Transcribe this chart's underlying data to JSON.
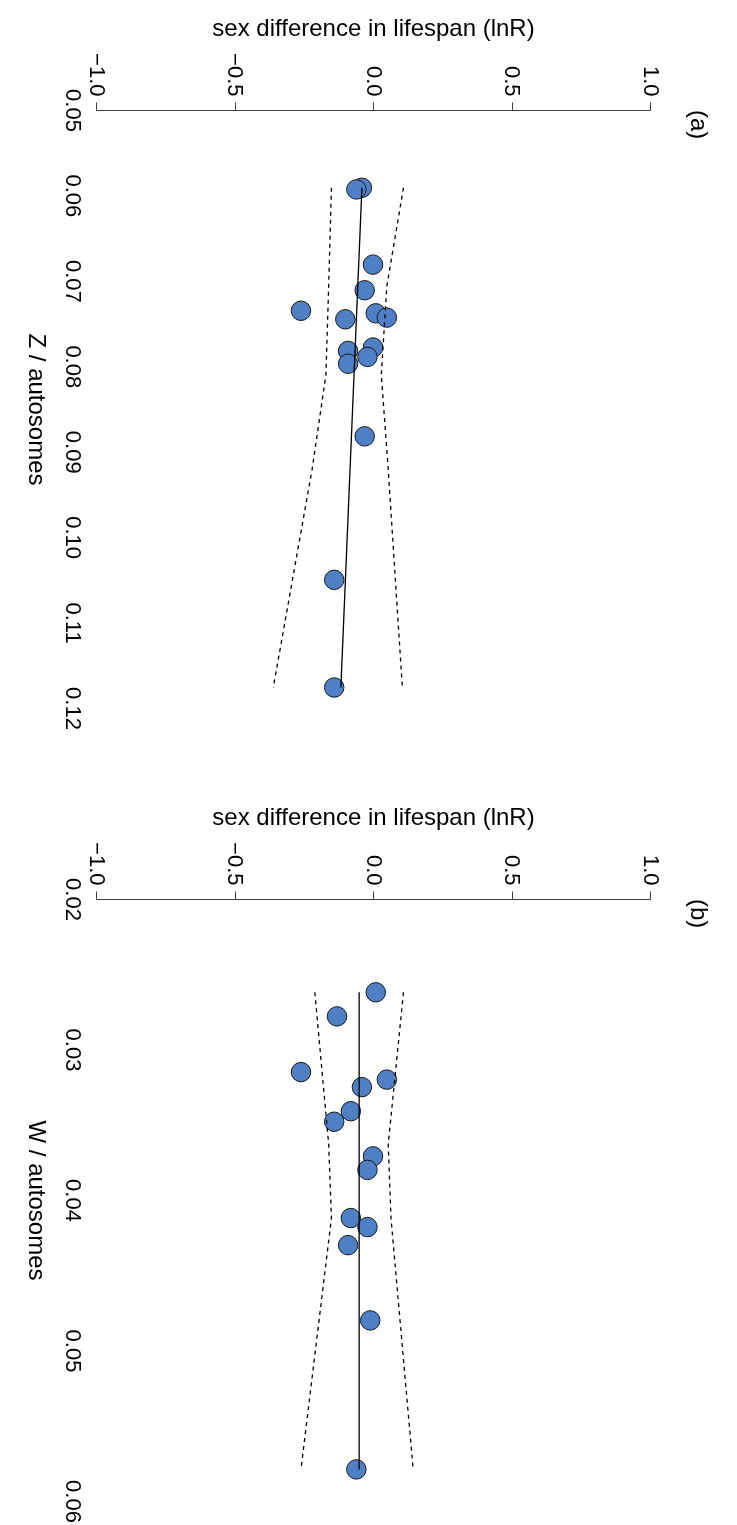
{
  "chart_data": [
    {
      "type": "scatter",
      "annotations": [
        "(a)"
      ],
      "xlabel": "sex difference in lifespan (lnR)",
      "ylabel": "Z / autosomes",
      "xlim": [
        -1,
        1
      ],
      "xticks": [
        {
          "value": -1,
          "label": "−1.0"
        },
        {
          "value": -0.5,
          "label": "−0.5"
        },
        {
          "value": 0,
          "label": "0.0"
        },
        {
          "value": 0.5,
          "label": "0.5"
        },
        {
          "value": 1,
          "label": "1.0"
        }
      ],
      "ylim": [
        0.12,
        0.05
      ],
      "yticks": [
        0.05,
        0.06,
        0.07,
        0.08,
        0.09,
        {
          "value": 0.1,
          "label": "0.10"
        },
        0.11,
        0.12
      ],
      "grid": false,
      "series": [
        {
          "type": "scatter",
          "marker": "circle",
          "color": "#4f7fc4",
          "x": [
            -0.04,
            -0.06,
            0.0,
            -0.03,
            -0.26,
            -0.1,
            0.01,
            0.05,
            0.0,
            -0.09,
            -0.02,
            -0.09,
            -0.03,
            -0.14,
            -0.14
          ],
          "values": [
            0.0591,
            0.0593,
            0.0681,
            0.0711,
            0.0735,
            0.0745,
            0.0738,
            0.0743,
            0.0778,
            0.0782,
            0.0789,
            0.0797,
            0.0882,
            0.105,
            0.1176
          ]
        },
        {
          "type": "line",
          "marker": "none",
          "color": "#000000",
          "line_style": "solid",
          "x": [
            -0.04,
            -0.116
          ],
          "values": [
            0.0591,
            0.1176
          ]
        },
        {
          "type": "line",
          "marker": "none",
          "color": "#000000",
          "line_style": "dashed",
          "x": [
            -0.15,
            -0.16,
            -0.17,
            -0.22,
            -0.36
          ],
          "values": [
            0.0591,
            0.0706,
            0.081,
            0.0921,
            0.1176
          ]
        },
        {
          "type": "line",
          "marker": "none",
          "color": "#000000",
          "line_style": "dashed",
          "x": [
            0.11,
            0.05,
            0.03,
            0.055,
            0.106
          ],
          "values": [
            0.0591,
            0.0706,
            0.081,
            0.0921,
            0.1176
          ]
        }
      ]
    },
    {
      "type": "scatter",
      "annotations": [
        "(b)"
      ],
      "xlabel": "sex difference in lifespan (lnR)",
      "ylabel": "W / autosomes",
      "xlim": [
        -1,
        1
      ],
      "xticks": [
        {
          "value": -1,
          "label": "−1.0"
        },
        {
          "value": -0.5,
          "label": "−0.5"
        },
        {
          "value": 0,
          "label": "0.0"
        },
        {
          "value": 0.5,
          "label": "0.5"
        },
        {
          "value": 1,
          "label": "1.0"
        }
      ],
      "ylim": [
        0.06,
        0.02
      ],
      "yticks": [
        0.02,
        0.03,
        0.04,
        0.05,
        0.06
      ],
      "grid": false,
      "series": [
        {
          "type": "scatter",
          "marker": "circle",
          "color": "#4f7fc4",
          "x": [
            0.01,
            -0.13,
            -0.26,
            0.05,
            -0.04,
            -0.08,
            -0.14,
            0.0,
            -0.02,
            -0.08,
            -0.02,
            -0.09,
            -0.01,
            -0.06
          ],
          "values": [
            0.0262,
            0.0278,
            0.0315,
            0.032,
            0.0325,
            0.0341,
            0.0348,
            0.0371,
            0.038,
            0.0412,
            0.0418,
            0.043,
            0.048,
            0.0579
          ]
        },
        {
          "type": "line",
          "marker": "none",
          "color": "#000000",
          "line_style": "solid",
          "x": [
            -0.05,
            -0.05
          ],
          "values": [
            0.0262,
            0.0579
          ]
        },
        {
          "type": "line",
          "marker": "none",
          "color": "#000000",
          "line_style": "dashed",
          "x": [
            -0.21,
            -0.16,
            -0.15,
            -0.26
          ],
          "values": [
            0.0262,
            0.0363,
            0.0412,
            0.0579
          ]
        },
        {
          "type": "line",
          "marker": "none",
          "color": "#000000",
          "line_style": "dashed",
          "x": [
            0.11,
            0.055,
            0.065,
            0.145
          ],
          "values": [
            0.0262,
            0.0363,
            0.0412,
            0.0579
          ]
        }
      ]
    }
  ]
}
